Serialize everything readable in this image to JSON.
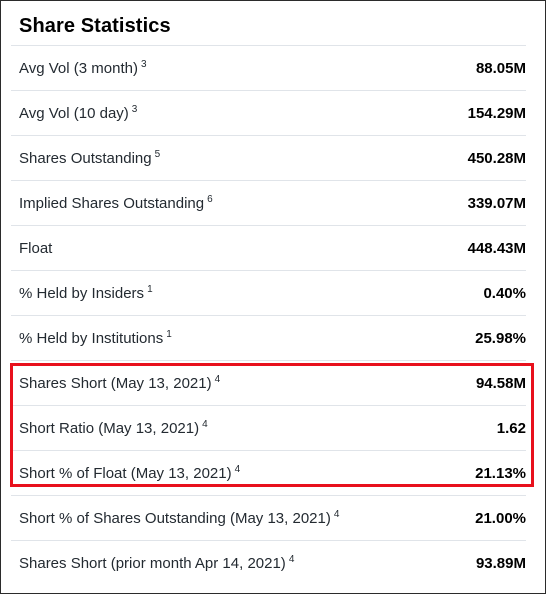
{
  "section": {
    "title": "Share Statistics"
  },
  "rows": [
    {
      "label": "Avg Vol (3 month)",
      "note": "3",
      "value": "88.05M"
    },
    {
      "label": "Avg Vol (10 day)",
      "note": "3",
      "value": "154.29M"
    },
    {
      "label": "Shares Outstanding",
      "note": "5",
      "value": "450.28M"
    },
    {
      "label": "Implied Shares Outstanding",
      "note": "6",
      "value": "339.07M"
    },
    {
      "label": "Float",
      "note": "",
      "value": "448.43M"
    },
    {
      "label": "% Held by Insiders",
      "note": "1",
      "value": "0.40%"
    },
    {
      "label": "% Held by Institutions",
      "note": "1",
      "value": "25.98%"
    },
    {
      "label": "Shares Short (May 13, 2021)",
      "note": "4",
      "value": "94.58M"
    },
    {
      "label": "Short Ratio (May 13, 2021)",
      "note": "4",
      "value": "1.62"
    },
    {
      "label": "Short % of Float (May 13, 2021)",
      "note": "4",
      "value": "21.13%"
    },
    {
      "label": "Short % of Shares Outstanding (May 13, 2021)",
      "note": "4",
      "value": "21.00%"
    },
    {
      "label": "Shares Short (prior month Apr 14, 2021)",
      "note": "4",
      "value": "93.89M"
    }
  ],
  "highlight": {
    "color": "#e8101c"
  }
}
